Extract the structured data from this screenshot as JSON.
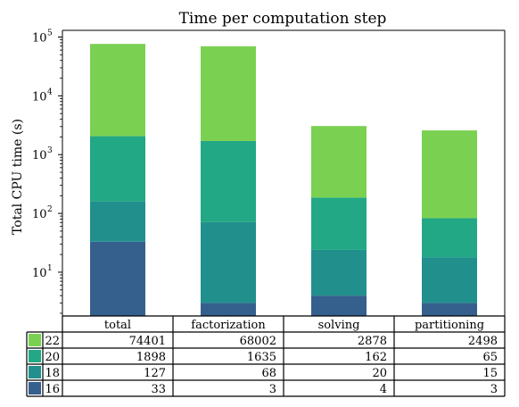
{
  "chart_data": {
    "type": "bar",
    "stacked": true,
    "title": "Time per computation step",
    "ylabel": "Total CPU time (s)",
    "yscale": "log",
    "ylim": [
      1.8,
      130000
    ],
    "yticks": [
      {
        "value": 10,
        "label": "10",
        "exp": "1"
      },
      {
        "value": 100,
        "label": "10",
        "exp": "2"
      },
      {
        "value": 1000,
        "label": "10",
        "exp": "3"
      },
      {
        "value": 10000,
        "label": "10",
        "exp": "4"
      },
      {
        "value": 100000,
        "label": "10",
        "exp": "5"
      }
    ],
    "categories": [
      "total",
      "factorization",
      "solving",
      "partitioning"
    ],
    "series": [
      {
        "name": "22",
        "color": "#7ad151",
        "values": [
          74401,
          68002,
          2878,
          2498
        ]
      },
      {
        "name": "20",
        "color": "#22a884",
        "values": [
          1898,
          1635,
          162,
          65
        ]
      },
      {
        "name": "18",
        "color": "#21908d",
        "values": [
          127,
          68,
          20,
          15
        ]
      },
      {
        "name": "16",
        "color": "#355f8d",
        "values": [
          33,
          3,
          4,
          3
        ]
      }
    ],
    "table_cells": [
      [
        "74401",
        "68002",
        "2878",
        "2498"
      ],
      [
        "1898",
        "1635",
        "162",
        "65"
      ],
      [
        "127",
        "68",
        "20",
        "15"
      ],
      [
        "33",
        "3",
        "4",
        "3"
      ]
    ],
    "grid": false,
    "legend": "table-below"
  }
}
